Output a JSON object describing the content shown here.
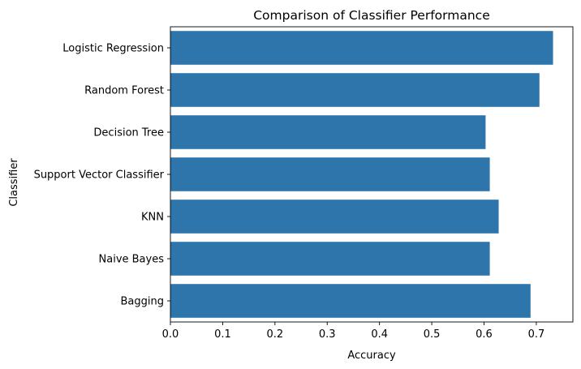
{
  "chart_data": {
    "type": "bar",
    "orientation": "horizontal",
    "title": "Comparison of Classifier Performance",
    "xlabel": "Accuracy",
    "ylabel": "Classifier",
    "categories": [
      "Logistic Regression",
      "Random Forest",
      "Decision Tree",
      "Support Vector Classifier",
      "KNN",
      "Naive Bayes",
      "Bagging"
    ],
    "values": [
      0.732,
      0.706,
      0.603,
      0.611,
      0.628,
      0.611,
      0.689
    ],
    "xlim": [
      0,
      0.77
    ],
    "xticks": [
      "0.0",
      "0.1",
      "0.2",
      "0.3",
      "0.4",
      "0.5",
      "0.6",
      "0.7"
    ],
    "grid": false,
    "legend": "none",
    "bar_color": "#2e75ab"
  }
}
